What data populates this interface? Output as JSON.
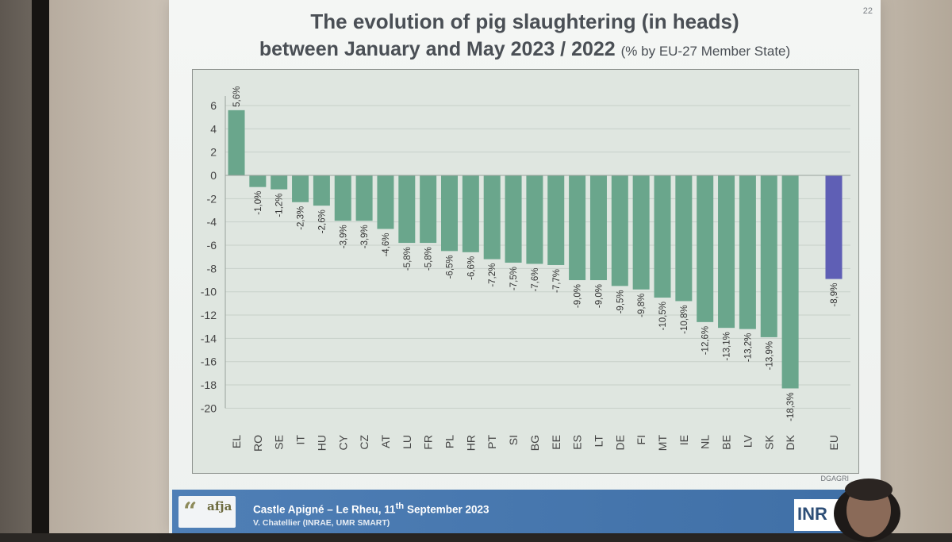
{
  "slide": {
    "title_line1": "The evolution of pig slaughtering (in heads)",
    "title_line2": "between January and May 2023 / 2022",
    "title_sub": "(% by EU-27 Member State)",
    "page_number": "22",
    "source": "DGAGRI"
  },
  "footer": {
    "logo_text": "afja",
    "event_prefix": "Castle Apigné – Le Rheu, 11",
    "event_sup": "th",
    "event_suffix": " September 2023",
    "author": "V. Chatellier (INRAE, UMR SMART)",
    "partner_logo": "INR"
  },
  "colors": {
    "bar": "#6aa68c",
    "bar_eu": "#5f5fb5",
    "plot_bg": "#dfe6e0"
  },
  "chart_data": {
    "type": "bar",
    "title": "The evolution of pig slaughtering (in heads) between January and May 2023 / 2022",
    "ylim": [
      -20,
      6
    ],
    "yticks": [
      6,
      4,
      2,
      0,
      -2,
      -4,
      -6,
      -8,
      -10,
      -12,
      -14,
      -16,
      -18,
      -20
    ],
    "grid": true,
    "categories": [
      "EL",
      "RO",
      "SE",
      "IT",
      "HU",
      "CY",
      "CZ",
      "AT",
      "LU",
      "FR",
      "PL",
      "HR",
      "PT",
      "SI",
      "BG",
      "EE",
      "ES",
      "LT",
      "DE",
      "FI",
      "MT",
      "IE",
      "NL",
      "BE",
      "LV",
      "SK",
      "DK",
      "EU"
    ],
    "values": [
      5.6,
      -1.0,
      -1.2,
      -2.3,
      -2.6,
      -3.9,
      -3.9,
      -4.6,
      -5.8,
      -5.8,
      -6.5,
      -6.6,
      -7.2,
      -7.5,
      -7.6,
      -7.7,
      -9.0,
      -9.0,
      -9.5,
      -9.8,
      -10.5,
      -10.8,
      -12.6,
      -13.1,
      -13.2,
      -13.9,
      -18.3,
      -8.9
    ],
    "labels": [
      "5,6%",
      "-1,0%",
      "-1,2%",
      "-2,3%",
      "-2,6%",
      "-3,9%",
      "-3,9%",
      "-4,6%",
      "-5,8%",
      "-5,8%",
      "-6,5%",
      "-6,6%",
      "-7,2%",
      "-7,5%",
      "-7,6%",
      "-7,7%",
      "-9,0%",
      "-9,0%",
      "-9,5%",
      "-9,8%",
      "-10,5%",
      "-10,8%",
      "-12,6%",
      "-13,1%",
      "-13,2%",
      "-13,9%",
      "-18,3%",
      "-8,9%"
    ],
    "highlight": "EU"
  }
}
